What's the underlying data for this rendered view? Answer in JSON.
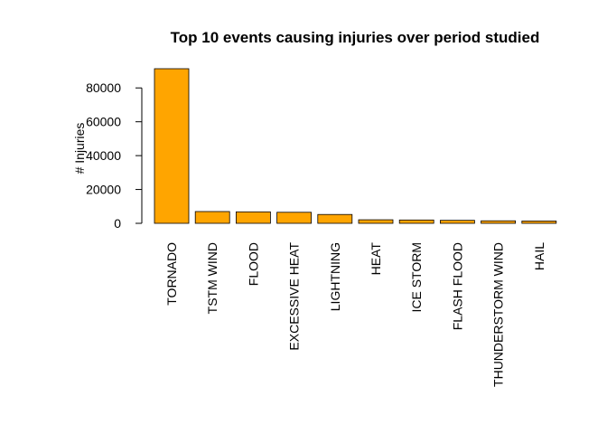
{
  "chart_data": {
    "type": "bar",
    "title": "Top 10 events causing injuries over period studied",
    "xlabel": "",
    "ylabel": "# Injuries",
    "categories": [
      "TORNADO",
      "TSTM WIND",
      "FLOOD",
      "EXCESSIVE HEAT",
      "LIGHTNING",
      "HEAT",
      "ICE STORM",
      "FLASH FLOOD",
      "THUNDERSTORM WIND",
      "HAIL"
    ],
    "values": [
      91346,
      6957,
      6789,
      6525,
      5230,
      2100,
      1975,
      1777,
      1488,
      1361
    ],
    "ylim": [
      0,
      91346
    ],
    "yticks": [
      0,
      20000,
      40000,
      60000,
      80000
    ],
    "ytick_labels": [
      "0",
      "20000",
      "40000",
      "60000",
      "80000"
    ],
    "bar_color": "#FFA500",
    "grid": false,
    "legend": "none"
  }
}
